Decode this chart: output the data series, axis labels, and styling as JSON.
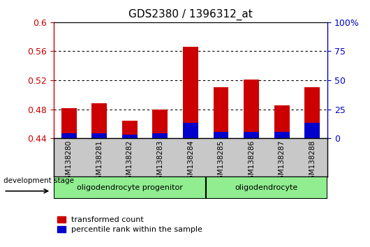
{
  "title": "GDS2380 / 1396312_at",
  "samples": [
    "GSM138280",
    "GSM138281",
    "GSM138282",
    "GSM138283",
    "GSM138284",
    "GSM138285",
    "GSM138286",
    "GSM138287",
    "GSM138288"
  ],
  "red_values": [
    0.482,
    0.488,
    0.464,
    0.48,
    0.566,
    0.51,
    0.521,
    0.485,
    0.51
  ],
  "blue_values": [
    0.447,
    0.447,
    0.445,
    0.447,
    0.461,
    0.449,
    0.449,
    0.449,
    0.461
  ],
  "ymin": 0.44,
  "ymax": 0.6,
  "yticks": [
    0.44,
    0.48,
    0.52,
    0.56,
    0.6
  ],
  "right_yticks": [
    0,
    25,
    50,
    75,
    100
  ],
  "group_box_color": "#90ee90",
  "red_color": "#cc0000",
  "blue_color": "#0000cc",
  "bar_width": 0.5,
  "left_tick_color": "#cc0000",
  "right_tick_color": "#0000cc",
  "legend_labels": [
    "transformed count",
    "percentile rank within the sample"
  ],
  "dev_stage_label": "development stage",
  "xaxis_bg": "#c8c8c8",
  "groups": [
    {
      "label": "oligodendrocyte progenitor",
      "start": 0,
      "end": 5
    },
    {
      "label": "oligodendrocyte",
      "start": 5,
      "end": 9
    }
  ]
}
